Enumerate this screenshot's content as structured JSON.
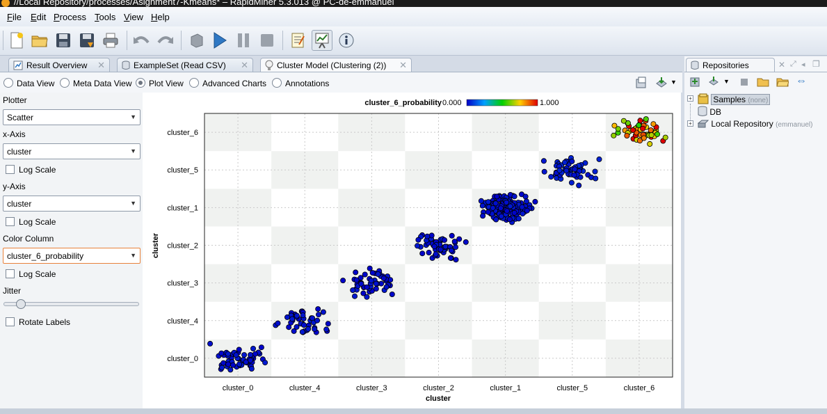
{
  "window": {
    "title": "//Local Repository/processes/Asignment7-Kmeans* – RapidMiner 5.3.013 @ PC-de-emmanuel"
  },
  "menubar": {
    "items": [
      {
        "underline": "F",
        "rest": "ile"
      },
      {
        "underline": "E",
        "rest": "dit"
      },
      {
        "underline": "P",
        "rest": "rocess"
      },
      {
        "underline": "T",
        "rest": "ools"
      },
      {
        "underline": "V",
        "rest": "iew"
      },
      {
        "underline": "H",
        "rest": "elp"
      }
    ]
  },
  "toolbar": {
    "buttons": [
      "new-process-icon",
      "open-icon",
      "save-icon",
      "save-as-icon",
      "print-icon",
      "undo-icon",
      "redo-icon",
      "wizard-icon",
      "run-icon",
      "pause-icon",
      "stop-icon",
      "design-perspective-icon",
      "result-perspective-icon",
      "welcome-perspective-icon"
    ],
    "active": "result-perspective-icon"
  },
  "tabs": [
    {
      "label": "Result Overview",
      "icon": "result-overview-icon"
    },
    {
      "label": "ExampleSet (Read CSV)",
      "icon": "table-icon"
    },
    {
      "label": "Cluster Model (Clustering (2))",
      "icon": "bulb-icon",
      "active": true
    }
  ],
  "view_modes": [
    {
      "label": "Data View",
      "selected": false
    },
    {
      "label": "Meta Data View",
      "selected": false
    },
    {
      "label": "Plot View",
      "selected": true
    },
    {
      "label": "Advanced Charts",
      "selected": false
    },
    {
      "label": "Annotations",
      "selected": false
    }
  ],
  "controls": {
    "plotter_label": "Plotter",
    "plotter_value": "Scatter",
    "xaxis_label": "x-Axis",
    "xaxis_value": "cluster",
    "ylabel": "y-Axis",
    "yaxis_value": "cluster",
    "log_scale_label": "Log Scale",
    "color_label": "Color Column",
    "color_value": "cluster_6_probability",
    "jitter_label": "Jitter",
    "jitter_level": 0.1,
    "rotate_label": "Rotate Labels"
  },
  "chart_data": {
    "type": "scatter",
    "title": "",
    "xlabel": "cluster",
    "ylabel": "cluster",
    "x_categories": [
      "cluster_0",
      "cluster_4",
      "cluster_3",
      "cluster_2",
      "cluster_1",
      "cluster_5",
      "cluster_6"
    ],
    "y_categories": [
      "cluster_0",
      "cluster_4",
      "cluster_3",
      "cluster_2",
      "cluster_1",
      "cluster_5",
      "cluster_6"
    ],
    "color_legend": {
      "column": "cluster_6_probability",
      "min": "0.000",
      "max": "1.000"
    },
    "clusters": [
      {
        "x": "cluster_0",
        "y": "cluster_0",
        "count": 55,
        "cluster_6_probability": 0.0
      },
      {
        "x": "cluster_4",
        "y": "cluster_4",
        "count": 45,
        "cluster_6_probability": 0.0
      },
      {
        "x": "cluster_3",
        "y": "cluster_3",
        "count": 50,
        "cluster_6_probability": 0.0
      },
      {
        "x": "cluster_2",
        "y": "cluster_2",
        "count": 55,
        "cluster_6_probability": 0.0
      },
      {
        "x": "cluster_1",
        "y": "cluster_1",
        "count": 160,
        "cluster_6_probability": 0.0
      },
      {
        "x": "cluster_5",
        "y": "cluster_5",
        "count": 60,
        "cluster_6_probability": 0.02
      },
      {
        "x": "cluster_6",
        "y": "cluster_6",
        "count": 55,
        "cluster_6_probability": 0.95
      }
    ],
    "jitter": true,
    "grid": true,
    "legend": "top"
  },
  "repositories": {
    "tab_label": "Repositories",
    "items": [
      {
        "label": "Samples",
        "sub": "(none)",
        "expandable": true,
        "selected": true
      },
      {
        "label": "DB",
        "sub": "",
        "expandable": false
      },
      {
        "label": "Local Repository",
        "sub": "(emmanuel)",
        "expandable": true
      }
    ]
  }
}
